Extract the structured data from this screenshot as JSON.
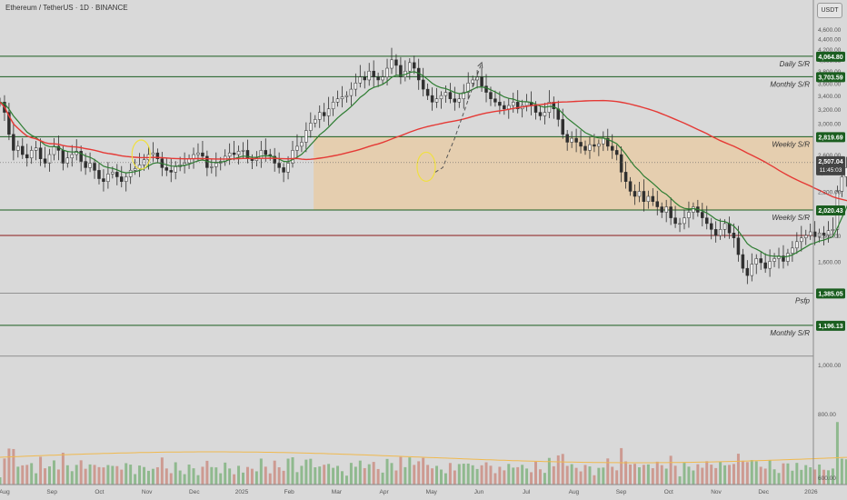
{
  "header": {
    "symbol_line": "Ethereum / TetherUS · 1D · BINANCE",
    "currency": "USDT"
  },
  "colors": {
    "background": "#d9d9d9",
    "candle": "#2f2f2f",
    "ma_fast": "#2e7d32",
    "ma_slow": "#e53935",
    "level_green": "#1b5e20",
    "level_red": "#8b1a1a",
    "zone_fill": "#e8c9a0",
    "volume_green": "#7cb07a",
    "volume_red": "#c98a7e",
    "volume_ma": "#f0b94e",
    "circle": "#f0e040",
    "tag_current": "#444444"
  },
  "chart_data": {
    "type": "candlestick",
    "title": "Ethereum / TetherUS · 1D · BINANCE",
    "y_scale": "log",
    "ylim": [
      580,
      5250
    ],
    "y_tick_labels": [
      "600.00",
      "800.00",
      "1,000.00",
      "1,200.00",
      "1,400.00",
      "1,600.00",
      "1,800.00",
      "2,000.00",
      "2,200.00",
      "2,400.00",
      "2,600.00",
      "2,800.00",
      "3,000.00",
      "3,200.00",
      "3,400.00",
      "3,600.00",
      "3,800.00",
      "4,000.00",
      "4,200.00",
      "4,400.00",
      "4,600.00"
    ],
    "x_tick_labels": [
      "Aug",
      "Sep",
      "Oct",
      "Nov",
      "Dec",
      "2025",
      "Feb",
      "Mar",
      "Apr",
      "May",
      "Jun",
      "Jul",
      "Aug",
      "Sep",
      "Oct",
      "Nov",
      "Dec",
      "2026"
    ],
    "x_range": [
      "2024-08-01",
      "2026-01-25"
    ],
    "levels": [
      {
        "price": 4064.8,
        "tag": "4,064.80",
        "label": "Daily S/R",
        "kind": "green"
      },
      {
        "price": 3703.59,
        "tag": "3,703.59",
        "label": "Monthly S/R",
        "kind": "green"
      },
      {
        "price": 2819.69,
        "tag": "2,819.69",
        "label": "Weekly S/R",
        "kind": "green"
      },
      {
        "price": 2020.43,
        "tag": "2,020.43",
        "label": "Weekly S/R",
        "kind": "green"
      },
      {
        "price": 1800.0,
        "tag": "",
        "label": "",
        "kind": "red"
      },
      {
        "price": 1385.05,
        "tag": "1,385.05",
        "label": "Psfp",
        "kind": "grey"
      },
      {
        "price": 1196.13,
        "tag": "1,196.13",
        "label": "Monthly S/R",
        "kind": "green"
      },
      {
        "price": 1040.0,
        "tag": "",
        "label": "",
        "kind": "grey"
      }
    ],
    "zone": {
      "from_date": "2025-02-26",
      "top": 2819.69,
      "bottom": 2020.43
    },
    "current_price": {
      "price": 2507.04,
      "label": "2,507.04",
      "countdown": "11:45:03"
    },
    "projection": [
      [
        "2025-05-18",
        2400
      ],
      [
        "2025-05-23",
        2450
      ],
      [
        "2025-05-31",
        2800
      ],
      [
        "2025-06-10",
        3400
      ],
      [
        "2025-06-18",
        3950
      ]
    ],
    "circles": [
      [
        "2024-11-03",
        2600
      ],
      [
        "2025-05-12",
        2460
      ]
    ],
    "ma_fast_name": "EMA",
    "ma_slow_name": "MA",
    "close": [
      3300,
      3150,
      2850,
      2650,
      2700,
      2600,
      2560,
      2650,
      2680,
      2550,
      2500,
      2600,
      2700,
      2650,
      2500,
      2560,
      2600,
      2640,
      2520,
      2450,
      2500,
      2420,
      2330,
      2300,
      2380,
      2400,
      2350,
      2300,
      2350,
      2420,
      2440,
      2480,
      2540,
      2600,
      2620,
      2550,
      2450,
      2420,
      2400,
      2460,
      2480,
      2500,
      2550,
      2600,
      2620,
      2580,
      2450,
      2460,
      2500,
      2520,
      2580,
      2620,
      2600,
      2640,
      2650,
      2550,
      2530,
      2560,
      2650,
      2600,
      2580,
      2500,
      2450,
      2400,
      2500,
      2650,
      2700,
      2750,
      2900,
      3000,
      3050,
      3150,
      3100,
      3200,
      3300,
      3350,
      3380,
      3400,
      3500,
      3600,
      3700,
      3650,
      3800,
      3700,
      3650,
      3700,
      3850,
      4000,
      3900,
      3700,
      3800,
      3950,
      3850,
      3650,
      3500,
      3400,
      3300,
      3350,
      3400,
      3450,
      3350,
      3300,
      3350,
      3450,
      3600,
      3650,
      3700,
      3550,
      3450,
      3350,
      3300,
      3250,
      3200,
      3250,
      3300,
      3200,
      3250,
      3300,
      3250,
      3150,
      3100,
      3150,
      3300,
      3200,
      3050,
      2850,
      2750,
      2800,
      2750,
      2700,
      2650,
      2720,
      2700,
      2730,
      2800,
      2700,
      2650,
      2600,
      2400,
      2300,
      2200,
      2150,
      2200,
      2100,
      2150,
      2100,
      2050,
      2000,
      2050,
      1950,
      1900,
      1900,
      1950,
      2000,
      2050,
      2000,
      1950,
      1900,
      1850,
      1800,
      1850,
      1900,
      1820,
      1780,
      1650,
      1550,
      1500,
      1580,
      1620,
      1590,
      1550,
      1600,
      1620,
      1640,
      1600,
      1660,
      1700,
      1750,
      1780,
      1800,
      1830,
      1790,
      1820,
      1800,
      1840,
      1850,
      2200,
      2350,
      2450,
      2600,
      2550,
      2500,
      2600,
      2650,
      2480,
      2500,
      2507
    ]
  }
}
